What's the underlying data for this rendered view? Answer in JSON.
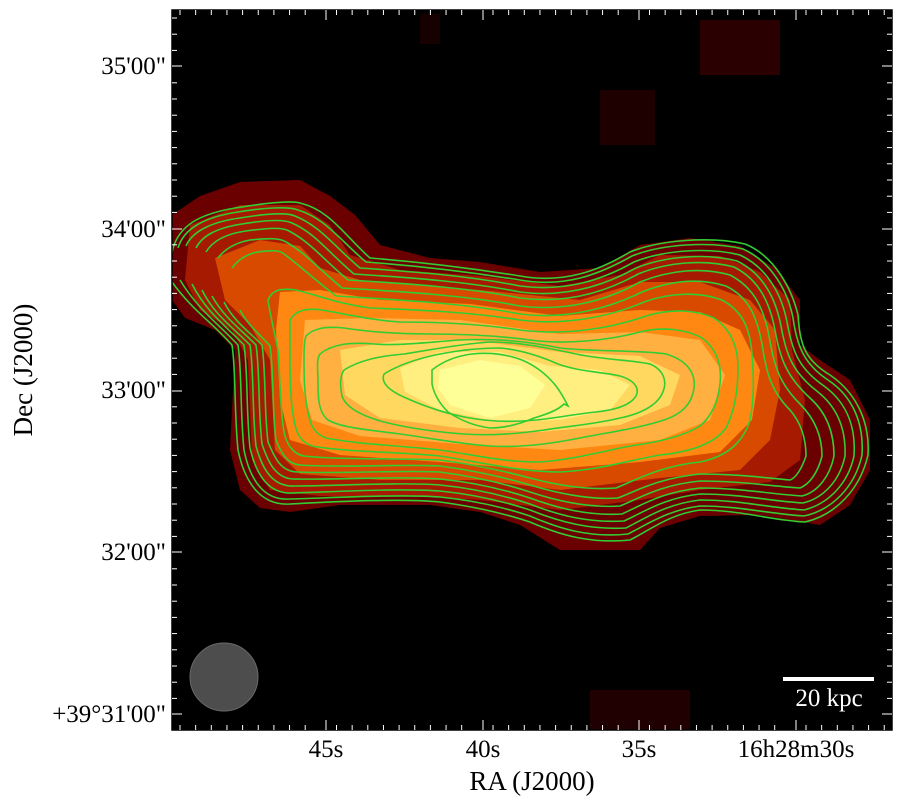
{
  "axes": {
    "xlabel": "RA (J2000)",
    "ylabel": "Dec (J2000)",
    "xticks": [
      "45s",
      "40s",
      "35s",
      "16h28m30s"
    ],
    "yticks": [
      "35'00\"",
      "34'00\"",
      "33'00\"",
      "32'00\"",
      "+39°31'00\""
    ]
  },
  "scalebar": {
    "label": "20 kpc"
  },
  "colors": {
    "background": "#000000",
    "contour": "#33cc33",
    "beam": "#555555",
    "colormap": [
      "#000000",
      "#5a0000",
      "#9a1500",
      "#d44a00",
      "#ff8a10",
      "#ffc850",
      "#ffff90"
    ]
  },
  "contours": {
    "count": 14
  }
}
